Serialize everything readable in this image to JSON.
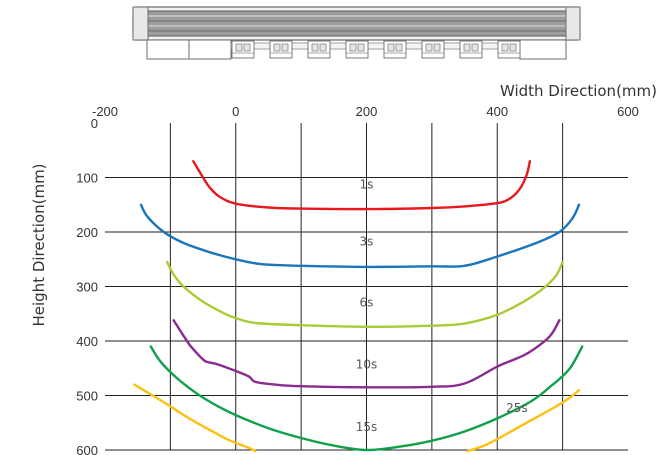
{
  "chart_data": {
    "type": "line",
    "xlabel": "Width Direction(mm)",
    "ylabel": "Height Direction(mm)",
    "xlim": [
      -200,
      600
    ],
    "ylim": [
      0,
      600
    ],
    "y_inverted": true,
    "x_ticks": [
      "-200",
      "0",
      "200",
      "400",
      "600"
    ],
    "y_ticks": [
      "0",
      "100",
      "200",
      "300",
      "400",
      "500",
      "600"
    ],
    "grid": true,
    "series": [
      {
        "name": "1s",
        "color": "#e8191e",
        "x": [
          -65,
          -50,
          -40,
          -25,
          0,
          50,
          100,
          200,
          300,
          350,
          400,
          420,
          435,
          445,
          450
        ],
        "y": [
          70,
          100,
          118,
          135,
          148,
          155,
          157,
          158,
          156,
          153,
          147,
          138,
          120,
          95,
          70
        ]
      },
      {
        "name": "3s",
        "color": "#1a75bb",
        "x": [
          -145,
          -135,
          -110,
          -80,
          -40,
          0,
          40,
          100,
          200,
          300,
          350,
          400,
          460,
          495,
          515,
          525
        ],
        "y": [
          150,
          172,
          200,
          220,
          237,
          250,
          259,
          262,
          264,
          263,
          262,
          245,
          220,
          200,
          175,
          150
        ]
      },
      {
        "name": "6s",
        "color": "#a9cc36",
        "x": [
          -105,
          -95,
          -80,
          -50,
          -20,
          0,
          30,
          100,
          200,
          300,
          350,
          400,
          440,
          470,
          490,
          500
        ],
        "y": [
          255,
          278,
          300,
          328,
          348,
          358,
          367,
          371,
          374,
          372,
          368,
          352,
          328,
          304,
          280,
          255
        ]
      },
      {
        "name": "10s",
        "color": "#8a2b8f",
        "x": [
          -95,
          -80,
          -70,
          -55,
          -45,
          -30,
          0,
          20,
          30,
          60,
          100,
          200,
          300,
          350,
          400,
          430,
          450,
          480,
          495
        ],
        "y": [
          362,
          390,
          408,
          428,
          438,
          442,
          455,
          465,
          475,
          480,
          483,
          485,
          484,
          478,
          447,
          432,
          420,
          392,
          362
        ]
      },
      {
        "name": "15s",
        "color": "#0fa04a",
        "x": [
          -130,
          -115,
          -90,
          -60,
          -30,
          0,
          50,
          100,
          150,
          200,
          250,
          300,
          350,
          400,
          450,
          480,
          510,
          530
        ],
        "y": [
          410,
          438,
          468,
          496,
          518,
          536,
          560,
          578,
          592,
          600,
          594,
          583,
          566,
          542,
          512,
          485,
          452,
          410
        ]
      },
      {
        "name": "25s",
        "color": "#fdc010",
        "x": [
          -155,
          -130,
          -100,
          -70,
          -40,
          -10,
          20,
          30
        ],
        "y": [
          480,
          498,
          520,
          543,
          563,
          582,
          596,
          602
        ],
        "x2": [
          355,
          380,
          400,
          430,
          460,
          490,
          510,
          525
        ],
        "y2": [
          602,
          592,
          580,
          560,
          540,
          520,
          505,
          490
        ]
      }
    ],
    "annotations": [
      {
        "text": "1s",
        "x": 200,
        "y": 120
      },
      {
        "text": "3s",
        "x": 200,
        "y": 225
      },
      {
        "text": "6s",
        "x": 200,
        "y": 337
      },
      {
        "text": "10s",
        "x": 200,
        "y": 450
      },
      {
        "text": "15s",
        "x": 200,
        "y": 565
      },
      {
        "text": "25s",
        "x": 430,
        "y": 530
      }
    ]
  },
  "colors": {
    "grid": "#222222",
    "text": "#333333",
    "device_frame": "#5a5a5a"
  }
}
